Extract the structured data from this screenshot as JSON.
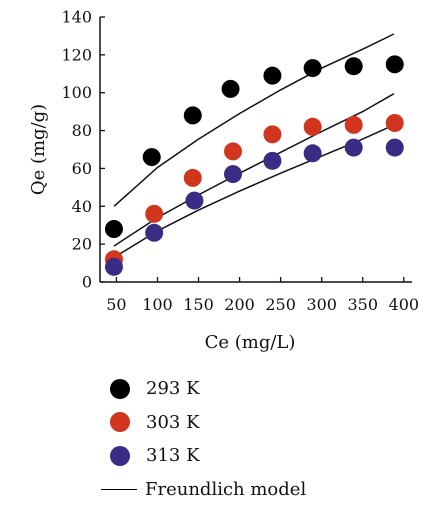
{
  "chart_data": {
    "type": "scatter",
    "xlabel": "Ce (mg/L)",
    "ylabel": "Qe (mg/g)",
    "xlim": [
      30,
      410
    ],
    "ylim": [
      0,
      140
    ],
    "xticks": [
      50,
      100,
      150,
      200,
      250,
      300,
      350,
      400
    ],
    "yticks": [
      0,
      20,
      40,
      60,
      80,
      100,
      120,
      140
    ],
    "grid": false,
    "legend_position": "below",
    "series": [
      {
        "name": "293 K",
        "color": "#000000",
        "x": [
          47,
          93,
          143,
          189,
          240,
          289,
          339,
          389
        ],
        "y": [
          28,
          66,
          88,
          102,
          109,
          113,
          114,
          115
        ],
        "fit_x": [
          47,
          100,
          150,
          200,
          250,
          300,
          350,
          388
        ],
        "fit_y": [
          40,
          60.5,
          75.5,
          89,
          101.5,
          113,
          123,
          131
        ]
      },
      {
        "name": "303 K",
        "color": "#d2351e",
        "x": [
          47,
          96,
          143,
          192,
          240,
          289,
          339,
          389
        ],
        "y": [
          12,
          36,
          55,
          69,
          78,
          82,
          83,
          84
        ],
        "fit_x": [
          47,
          100,
          150,
          200,
          250,
          300,
          350,
          388
        ],
        "fit_y": [
          19,
          34,
          46,
          57.5,
          68.5,
          79.5,
          90,
          99.5
        ]
      },
      {
        "name": "313 K",
        "color": "#3a2c85",
        "x": [
          47,
          96,
          145,
          192,
          240,
          289,
          339,
          389
        ],
        "y": [
          8,
          26,
          43,
          57,
          64,
          68,
          71,
          71
        ],
        "fit_x": [
          47,
          100,
          150,
          200,
          250,
          300,
          350,
          388
        ],
        "fit_y": [
          13,
          27,
          38,
          48,
          57.5,
          66.5,
          75.5,
          83
        ]
      }
    ],
    "legend_items": [
      {
        "label": "293 K",
        "kind": "marker",
        "color": "#000000"
      },
      {
        "label": "303 K",
        "kind": "marker",
        "color": "#d2351e"
      },
      {
        "label": "313 K",
        "kind": "marker",
        "color": "#3a2c85"
      },
      {
        "label": "Freundlich model",
        "kind": "line",
        "color": "#000000"
      }
    ]
  }
}
